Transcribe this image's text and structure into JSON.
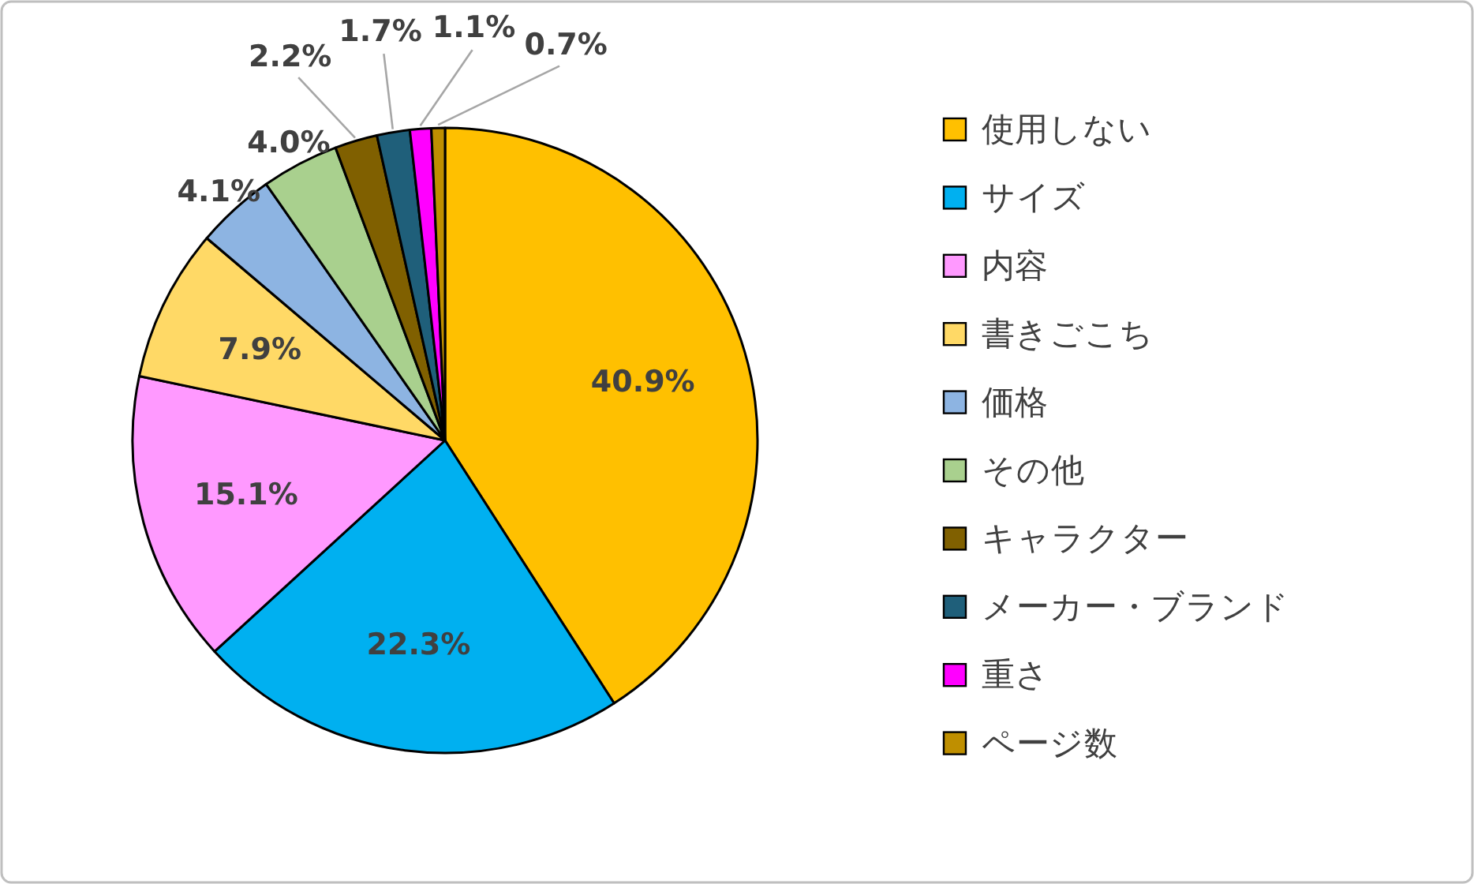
{
  "chart_data": {
    "type": "pie",
    "categories": [
      "使用しない",
      "サイズ",
      "内容",
      "書きごこち",
      "価格",
      "その他",
      "キャラクター",
      "メーカー・ブランド",
      "重さ",
      "ページ数"
    ],
    "values": [
      40.9,
      22.3,
      15.1,
      7.9,
      4.1,
      4.0,
      2.2,
      1.7,
      1.1,
      0.7
    ],
    "colors": [
      "#ffc000",
      "#00b0f0",
      "#ff99ff",
      "#ffd966",
      "#8db4e2",
      "#a9d08e",
      "#806000",
      "#1f5f7a",
      "#ff00ff",
      "#bf8f00"
    ],
    "value_labels": [
      "40.9%",
      "22.3%",
      "15.1%",
      "7.9%",
      "4.1%",
      "4.0%",
      "2.2%",
      "1.7%",
      "1.1%",
      "0.7%"
    ],
    "legend": "right"
  }
}
